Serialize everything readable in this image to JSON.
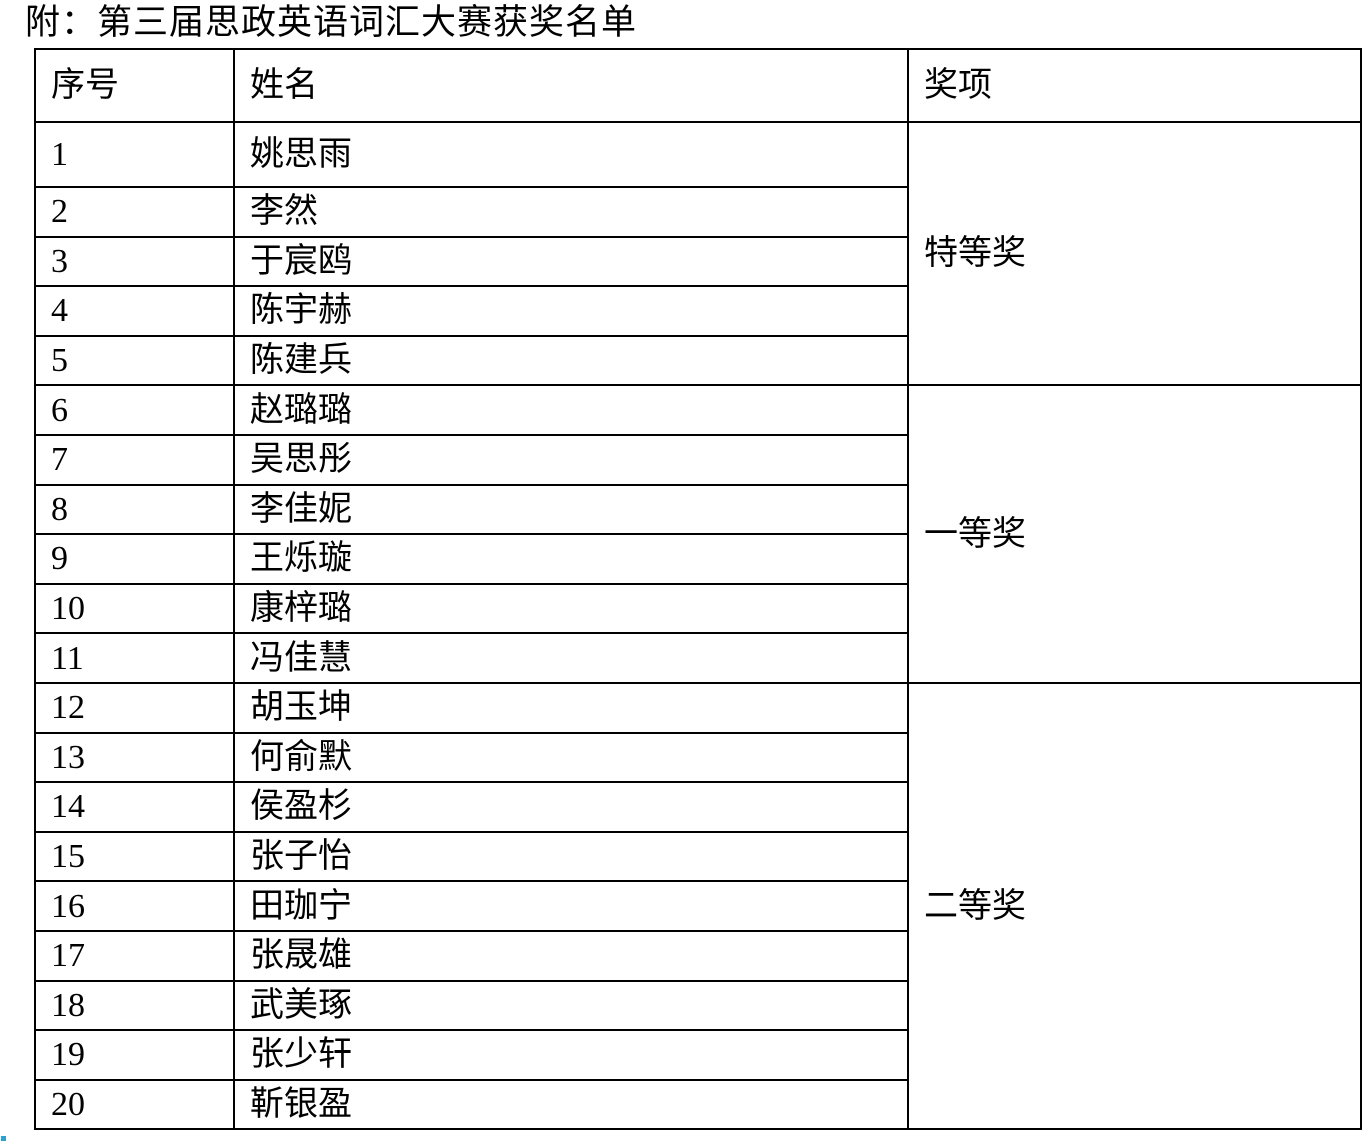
{
  "title": "附：第三届思政英语词汇大赛获奖名单",
  "table": {
    "headers": {
      "no": "序号",
      "name": "姓名",
      "award": "奖项"
    },
    "rows": [
      {
        "no": "1",
        "name": "姚思雨"
      },
      {
        "no": "2",
        "name": "李然"
      },
      {
        "no": "3",
        "name": "于宸鸥"
      },
      {
        "no": "4",
        "name": "陈宇赫"
      },
      {
        "no": "5",
        "name": "陈建兵"
      },
      {
        "no": "6",
        "name": "赵璐璐"
      },
      {
        "no": "7",
        "name": "吴思彤"
      },
      {
        "no": "8",
        "name": "李佳妮"
      },
      {
        "no": "9",
        "name": "王烁璇"
      },
      {
        "no": "10",
        "name": "康梓璐"
      },
      {
        "no": "11",
        "name": "冯佳慧"
      },
      {
        "no": "12",
        "name": "胡玉坤"
      },
      {
        "no": "13",
        "name": "何俞默"
      },
      {
        "no": "14",
        "name": "侯盈杉"
      },
      {
        "no": "15",
        "name": "张子怡"
      },
      {
        "no": "16",
        "name": "田珈宁"
      },
      {
        "no": "17",
        "name": "张晟雄"
      },
      {
        "no": "18",
        "name": "武美琢"
      },
      {
        "no": "19",
        "name": "张少轩"
      },
      {
        "no": "20",
        "name": "靳银盈"
      }
    ],
    "awards": [
      {
        "label": "特等奖",
        "span": "5"
      },
      {
        "label": "一等奖",
        "span": "6"
      },
      {
        "label": "二等奖",
        "span": "9"
      }
    ]
  },
  "colors": {
    "text": "#000000",
    "border": "#000000",
    "artifact": "#2f9fd0"
  }
}
